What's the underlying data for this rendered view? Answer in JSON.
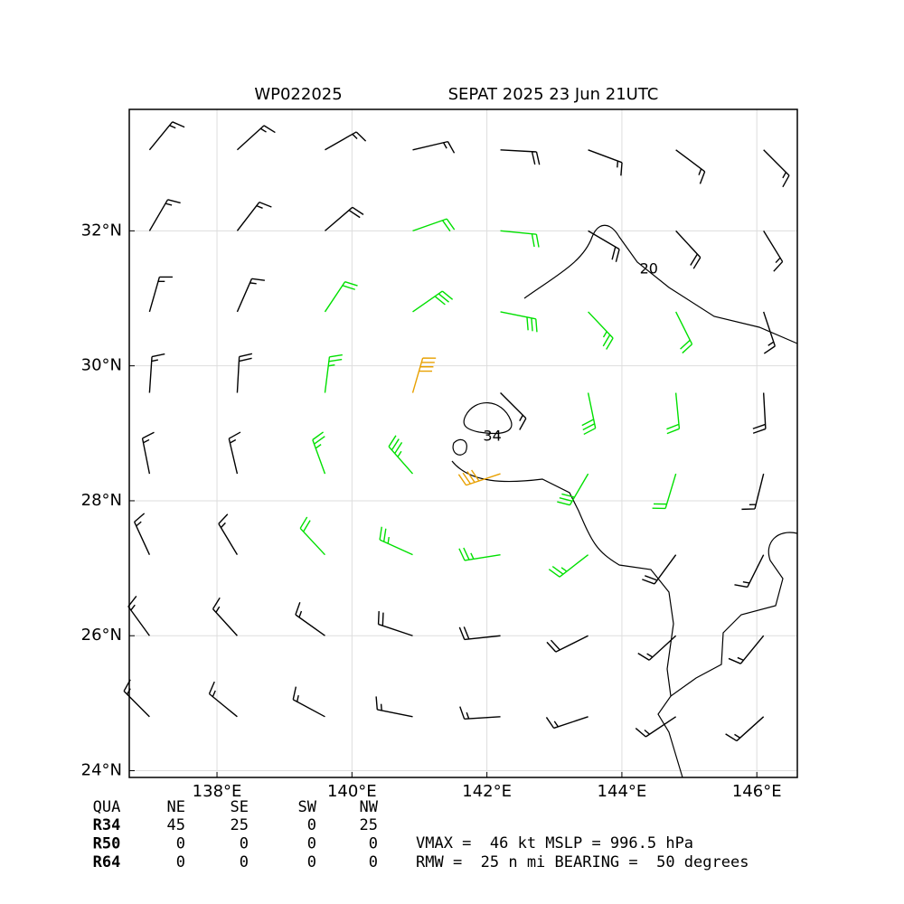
{
  "map": {
    "title_left": "WP022025",
    "title_right": "SEPAT 2025 23 Jun 21UTC",
    "xlim": [
      136.7,
      146.6
    ],
    "ylim": [
      23.9,
      33.8
    ],
    "xticks": [
      {
        "value": 138,
        "label": "138°E"
      },
      {
        "value": 140,
        "label": "140°E"
      },
      {
        "value": 142,
        "label": "142°E"
      },
      {
        "value": 144,
        "label": "144°E"
      },
      {
        "value": 146,
        "label": "146°E"
      }
    ],
    "yticks": [
      {
        "value": 24,
        "label": "24°N"
      },
      {
        "value": 26,
        "label": "26°N"
      },
      {
        "value": 28,
        "label": "28°N"
      },
      {
        "value": 30,
        "label": "30°N"
      },
      {
        "value": 32,
        "label": "32°N"
      }
    ],
    "grid": true,
    "wind": {
      "lons": [
        137,
        138.3,
        139.6,
        140.9,
        142.2,
        143.5,
        144.8,
        146.1
      ],
      "lats": [
        33.2,
        32,
        30.8,
        29.6,
        28.4,
        27.2,
        26,
        24.8
      ],
      "u": [
        [
          -9,
          -11,
          -14,
          -17,
          -18,
          -16,
          -12,
          -10
        ],
        [
          -7,
          -10,
          -14,
          -20,
          -21,
          -17,
          -12,
          -8
        ],
        [
          -4,
          -7,
          -12,
          -23,
          -30,
          -18,
          -9,
          -5
        ],
        [
          -1,
          -1,
          -3,
          -11,
          -12,
          -6,
          -2,
          -1
        ],
        [
          3,
          4,
          8,
          22,
          36,
          14,
          6,
          4
        ],
        [
          6,
          9,
          14,
          22,
          25,
          18,
          11,
          7
        ],
        [
          8,
          10,
          14,
          18,
          19,
          16,
          12,
          9
        ],
        [
          9,
          11,
          13,
          15,
          16,
          15,
          12,
          10
        ]
      ],
      "v": [
        [
          -11,
          -10,
          -8,
          -4,
          1,
          6,
          9,
          10
        ],
        [
          -12,
          -13,
          -12,
          -7,
          2,
          10,
          13,
          13
        ],
        [
          -14,
          -16,
          -18,
          -16,
          6,
          19,
          18,
          15
        ],
        [
          -15,
          -18,
          -24,
          -38,
          12,
          29,
          21,
          18
        ],
        [
          -15,
          -17,
          -22,
          -25,
          12,
          24,
          20,
          16
        ],
        [
          -13,
          -15,
          -15,
          -10,
          4,
          14,
          15,
          14
        ],
        [
          -11,
          -11,
          -10,
          -6,
          2,
          8,
          11,
          11
        ],
        [
          -9,
          -9,
          -7,
          -3,
          1,
          5,
          8,
          9
        ]
      ]
    },
    "base_color": "#000000",
    "speed_colors": [
      {
        "min": 20,
        "color": "#00e000"
      },
      {
        "min": 34,
        "color": "#e8a000"
      }
    ],
    "contours": [
      {
        "level": 20,
        "lon": 144.4,
        "lat": 31.43
      },
      {
        "level": 34,
        "lon": 142.08,
        "lat": 28.95
      }
    ],
    "table": {
      "header": [
        "QUA",
        "NE",
        "SE",
        "SW",
        "NW"
      ],
      "rows": [
        [
          "R34",
          45,
          25,
          0,
          25
        ],
        [
          "R50",
          0,
          0,
          0,
          0
        ],
        [
          "R64",
          0,
          0,
          0,
          0
        ]
      ]
    },
    "stats": [
      "VMAX =  46 kt MSLP = 996.5 hPa",
      "RMW =  25 n mi BEARING =  50 degrees"
    ]
  }
}
